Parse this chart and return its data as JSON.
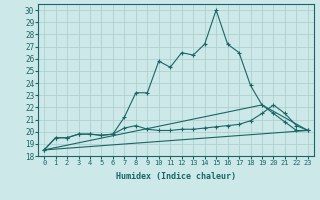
{
  "xlabel": "Humidex (Indice chaleur)",
  "bg_color": "#cce8e8",
  "grid_color": "#aacccc",
  "line_color": "#1a6666",
  "xlim": [
    -0.5,
    23.5
  ],
  "ylim": [
    18,
    30.5
  ],
  "yticks": [
    18,
    19,
    20,
    21,
    22,
    23,
    24,
    25,
    26,
    27,
    28,
    29,
    30
  ],
  "xticks": [
    0,
    1,
    2,
    3,
    4,
    5,
    6,
    7,
    8,
    9,
    10,
    11,
    12,
    13,
    14,
    15,
    16,
    17,
    18,
    19,
    20,
    21,
    22,
    23
  ],
  "line1_x": [
    0,
    1,
    2,
    3,
    4,
    5,
    6,
    7,
    8,
    9,
    10,
    11,
    12,
    13,
    14,
    15,
    16,
    17,
    18,
    19,
    20,
    21,
    22,
    23
  ],
  "line1_y": [
    18.5,
    19.5,
    19.5,
    19.8,
    19.8,
    19.7,
    19.8,
    21.2,
    23.2,
    23.2,
    25.8,
    25.3,
    26.5,
    26.3,
    27.2,
    30.0,
    27.2,
    26.5,
    23.8,
    22.2,
    21.5,
    20.8,
    20.1,
    20.1
  ],
  "line2_x": [
    0,
    1,
    2,
    3,
    4,
    5,
    6,
    7,
    8,
    9,
    10,
    11,
    12,
    13,
    14,
    15,
    16,
    17,
    18,
    19,
    20,
    21,
    22,
    23
  ],
  "line2_y": [
    18.5,
    19.5,
    19.5,
    19.8,
    19.8,
    19.7,
    19.8,
    20.3,
    20.5,
    20.2,
    20.1,
    20.1,
    20.2,
    20.2,
    20.3,
    20.4,
    20.5,
    20.6,
    20.9,
    21.5,
    22.2,
    21.5,
    20.5,
    20.1
  ],
  "line3_x": [
    0,
    23
  ],
  "line3_y": [
    18.5,
    20.1
  ],
  "line4_x": [
    0,
    19,
    23
  ],
  "line4_y": [
    18.5,
    22.2,
    20.1
  ]
}
